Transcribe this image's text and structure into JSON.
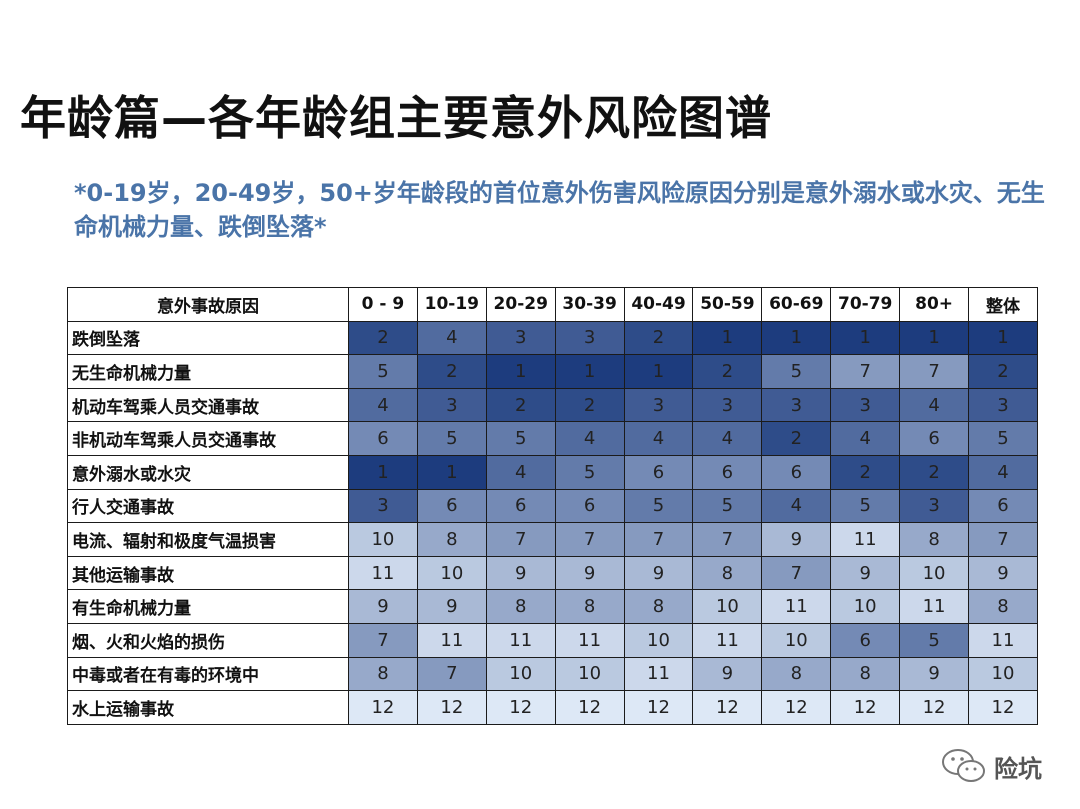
{
  "title": "年龄篇—各年龄组主要意外风险图谱",
  "subtitle": "*0-19岁，20-49岁，50+岁年龄段的首位意外伤害风险原因分别是意外溺水或水灾、无生命机械力量、跌倒坠落*",
  "watermark": {
    "text": "险坑",
    "icon": "wechat-icon"
  },
  "chart_data": {
    "type": "heatmap",
    "corner_label": "意外事故原因",
    "columns": [
      "0 - 9",
      "10-19",
      "20-29",
      "30-39",
      "40-49",
      "50-59",
      "60-69",
      "70-79",
      "80+",
      "整体"
    ],
    "rows": [
      {
        "cause": "跌倒坠落",
        "ranks": [
          2,
          4,
          3,
          3,
          2,
          1,
          1,
          1,
          1,
          1
        ]
      },
      {
        "cause": "无生命机械力量",
        "ranks": [
          5,
          2,
          1,
          1,
          1,
          2,
          5,
          7,
          7,
          2
        ]
      },
      {
        "cause": "机动车驾乘人员交通事故",
        "ranks": [
          4,
          3,
          2,
          2,
          3,
          3,
          3,
          3,
          4,
          3
        ]
      },
      {
        "cause": "非机动车驾乘人员交通事故",
        "ranks": [
          6,
          5,
          5,
          4,
          4,
          4,
          2,
          4,
          6,
          5
        ]
      },
      {
        "cause": "意外溺水或水灾",
        "ranks": [
          1,
          1,
          4,
          5,
          6,
          6,
          6,
          2,
          2,
          4
        ]
      },
      {
        "cause": "行人交通事故",
        "ranks": [
          3,
          6,
          6,
          6,
          5,
          5,
          4,
          5,
          3,
          6
        ]
      },
      {
        "cause": "电流、辐射和极度气温损害",
        "ranks": [
          10,
          8,
          7,
          7,
          7,
          7,
          9,
          11,
          8,
          7
        ]
      },
      {
        "cause": "其他运输事故",
        "ranks": [
          11,
          10,
          9,
          9,
          9,
          8,
          7,
          9,
          10,
          9
        ]
      },
      {
        "cause": "有生命机械力量",
        "ranks": [
          9,
          9,
          8,
          8,
          8,
          10,
          11,
          10,
          11,
          8
        ]
      },
      {
        "cause": "烟、火和火焰的损伤",
        "ranks": [
          7,
          11,
          11,
          11,
          10,
          11,
          10,
          6,
          5,
          11
        ]
      },
      {
        "cause": "中毒或者在有毒的环境中",
        "ranks": [
          8,
          7,
          10,
          10,
          11,
          9,
          8,
          8,
          9,
          10
        ]
      },
      {
        "cause": "水上运输事故",
        "ranks": [
          12,
          12,
          12,
          12,
          12,
          12,
          12,
          12,
          12,
          12
        ]
      }
    ],
    "color_scale": {
      "low_rank_color": "#1d3c7e",
      "high_rank_color": "#dde8f6"
    }
  }
}
